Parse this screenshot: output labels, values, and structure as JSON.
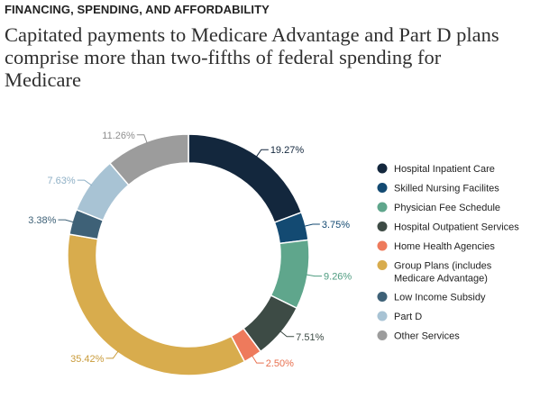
{
  "header": {
    "kicker": "FINANCING, SPENDING, AND AFFORDABILITY",
    "title": "Capitated payments to Medicare Advantage and Part D plans comprise more than two-fifths of federal spending for Medicare"
  },
  "chart_data": {
    "type": "pie",
    "donut": true,
    "title": "Capitated payments to Medicare Advantage and Part D plans comprise more than two-fifths of federal spending for Medicare",
    "legend_position": "right",
    "series": [
      {
        "name": "Hospital Inpatient Care",
        "value": 19.27,
        "label": "19.27%",
        "color": "#13273d",
        "label_color": "#13273d"
      },
      {
        "name": "Skilled Nursing Facilites",
        "value": 3.75,
        "label": "3.75%",
        "color": "#134a72",
        "label_color": "#134a72"
      },
      {
        "name": "Physician Fee Schedule",
        "value": 9.26,
        "label": "9.26%",
        "color": "#5fa68c",
        "label_color": "#4e9c80"
      },
      {
        "name": "Hospital Outpatient Services",
        "value": 7.51,
        "label": "7.51%",
        "color": "#3d4b45",
        "label_color": "#3d4b45"
      },
      {
        "name": "Home Health Agencies",
        "value": 2.5,
        "label": "2.50%",
        "color": "#ee7a5c",
        "label_color": "#e8704f"
      },
      {
        "name": "Group Plans (includes Medicare Advantage)",
        "value": 35.42,
        "label": "35.42%",
        "color": "#d8ac4d",
        "label_color": "#c99b3a"
      },
      {
        "name": "Low Income Subsidy",
        "value": 3.38,
        "label": "3.38%",
        "color": "#3e6177",
        "label_color": "#3e6177"
      },
      {
        "name": "Part D",
        "value": 7.63,
        "label": "7.63%",
        "color": "#a8c3d4",
        "label_color": "#8fb0c6"
      },
      {
        "name": "Other Services",
        "value": 11.26,
        "label": "11.26%",
        "color": "#9c9c9c",
        "label_color": "#8f8f8f"
      }
    ]
  }
}
